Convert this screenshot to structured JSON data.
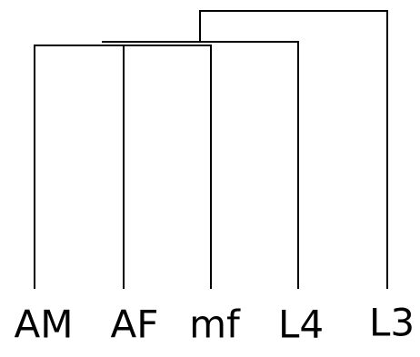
{
  "nodes": [
    {
      "label": "AM"
    },
    {
      "label": "AF"
    },
    {
      "label": "mf"
    },
    {
      "label": "L4"
    },
    {
      "label": "L3"
    }
  ]
}
